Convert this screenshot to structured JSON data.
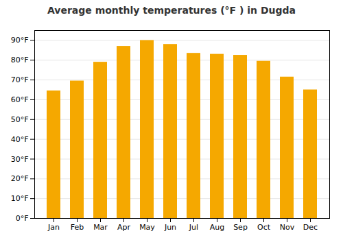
{
  "chart_data": {
    "type": "bar",
    "title": "Average monthly temperatures (°F ) in Dugda",
    "categories": [
      "Jan",
      "Feb",
      "Mar",
      "Apr",
      "May",
      "Jun",
      "Jul",
      "Aug",
      "Sep",
      "Oct",
      "Nov",
      "Dec"
    ],
    "values": [
      64.5,
      69.5,
      79.0,
      87.0,
      90.0,
      88.0,
      83.5,
      83.0,
      82.5,
      79.5,
      71.5,
      65.0
    ],
    "color": "#F5A800",
    "ylim": [
      0,
      95
    ],
    "yticks": [
      {
        "value": 0,
        "label": "0°F"
      },
      {
        "value": 10,
        "label": "10°F"
      },
      {
        "value": 20,
        "label": "20°F"
      },
      {
        "value": 30,
        "label": "30°F"
      },
      {
        "value": 40,
        "label": "40°F"
      },
      {
        "value": 50,
        "label": "50°F"
      },
      {
        "value": 60,
        "label": "60°F"
      },
      {
        "value": 70,
        "label": "70°F"
      },
      {
        "value": 80,
        "label": "80°F"
      },
      {
        "value": 90,
        "label": "90°F"
      }
    ],
    "grid": true
  }
}
